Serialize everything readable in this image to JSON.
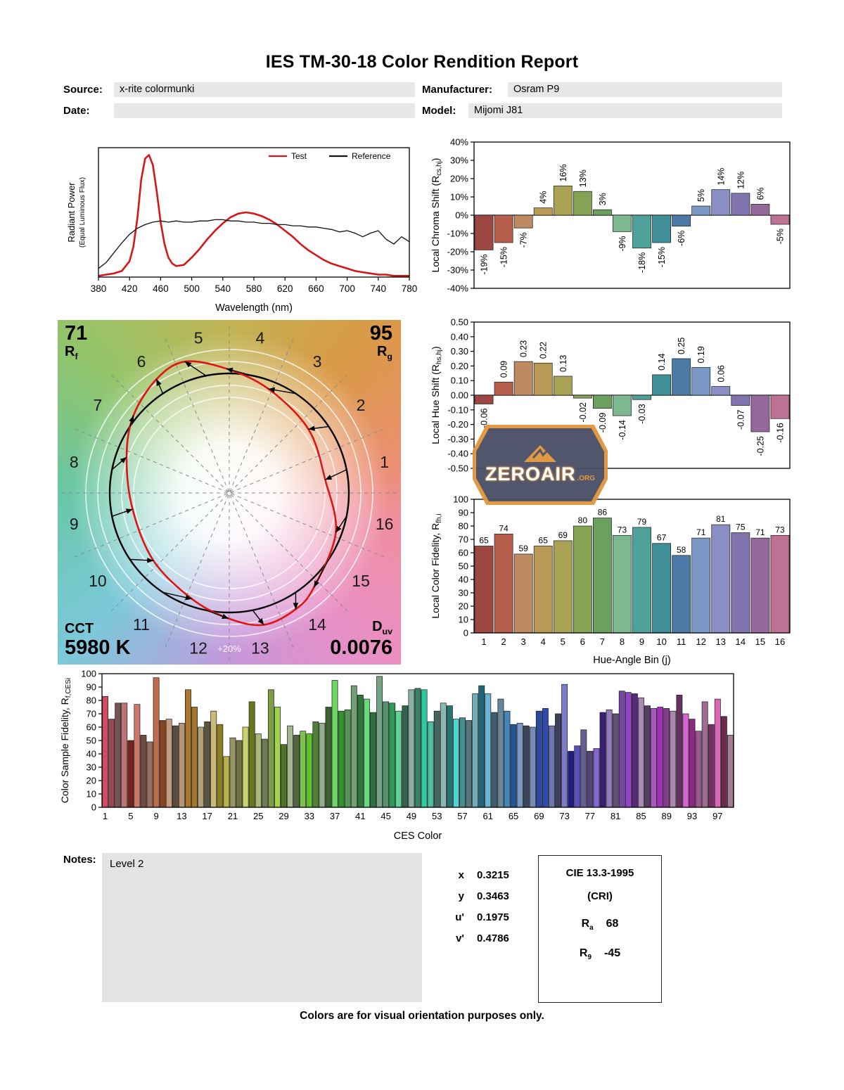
{
  "report": {
    "title": "IES TM-30-18 Color Rendition Report",
    "fields": {
      "source_label": "Source:",
      "source_value": "x-rite colormunki",
      "manufacturer_label": "Manufacturer:",
      "manufacturer_value": "Osram P9",
      "date_label": "Date:",
      "date_value": "",
      "model_label": "Model:",
      "model_value": "Mijomi J81"
    },
    "notes_label": "Notes:",
    "notes_value": "Level 2",
    "chromaticity": [
      {
        "label": "x",
        "value": "0.3215"
      },
      {
        "label": "y",
        "value": "0.3463"
      },
      {
        "label": "u'",
        "value": "0.1975"
      },
      {
        "label": "v'",
        "value": "0.4786"
      }
    ],
    "cri": {
      "title": "CIE 13.3-1995",
      "subtitle": "(CRI)",
      "ra_main": "R",
      "ra_sub": "a",
      "ra_value": "68",
      "r9_main": "R",
      "r9_sub": "9",
      "r9_value": "-45"
    },
    "footer": "Colors are for visual orientation purposes only.",
    "watermark": {
      "text": "ZEROAIR",
      "suffix": ".ORG"
    }
  },
  "cvg": {
    "rf_value": "71",
    "rf_main": "R",
    "rf_sub": "f",
    "rg_value": "95",
    "rg_main": "R",
    "rg_sub": "g",
    "cct_label": "CCT",
    "cct_value": "5980 K",
    "duv_main": "D",
    "duv_sub": "uv",
    "duv_value": "0.0076",
    "ring_label": "+20%",
    "reference_color": "#000000",
    "test_color": "#e01414"
  },
  "hue_bin_colors": [
    "#9e4742",
    "#b85f4b",
    "#bd8a62",
    "#b89a55",
    "#aaa255",
    "#84a355",
    "#6ba05e",
    "#7cb890",
    "#4fa29b",
    "#3f8f99",
    "#4a7aa5",
    "#7b97c6",
    "#8b8ec4",
    "#8173ad",
    "#95689c",
    "#bd7295"
  ],
  "chart_data": [
    {
      "id": "spectral",
      "type": "line",
      "title": "",
      "xlabel": "Wavelength (nm)",
      "ylabel_lines": [
        "Radiant Power",
        "(Equal Luminous Flux)"
      ],
      "xlim": [
        380,
        780
      ],
      "xtick_step": 40,
      "ylim": [
        0,
        1.06
      ],
      "legend_position": "top-right",
      "series": [
        {
          "name": "Test",
          "color": "#d81617",
          "stroke_width": 2.6,
          "x": [
            380,
            390,
            400,
            410,
            420,
            425,
            430,
            435,
            440,
            445,
            450,
            455,
            460,
            465,
            470,
            475,
            480,
            490,
            500,
            510,
            520,
            530,
            540,
            550,
            560,
            570,
            580,
            590,
            600,
            610,
            620,
            630,
            640,
            650,
            660,
            670,
            680,
            690,
            700,
            710,
            720,
            730,
            740,
            750,
            760,
            770,
            780
          ],
          "y": [
            0.01,
            0.02,
            0.03,
            0.05,
            0.13,
            0.25,
            0.48,
            0.8,
            0.97,
            1.0,
            0.92,
            0.7,
            0.45,
            0.27,
            0.16,
            0.11,
            0.09,
            0.1,
            0.16,
            0.23,
            0.31,
            0.38,
            0.44,
            0.49,
            0.52,
            0.53,
            0.52,
            0.5,
            0.47,
            0.43,
            0.38,
            0.33,
            0.27,
            0.22,
            0.18,
            0.14,
            0.11,
            0.09,
            0.07,
            0.05,
            0.04,
            0.03,
            0.02,
            0.02,
            0.01,
            0.01,
            0.01
          ]
        },
        {
          "name": "Reference",
          "color": "#111111",
          "stroke_width": 1.3,
          "x": [
            380,
            390,
            400,
            410,
            420,
            430,
            440,
            450,
            460,
            470,
            480,
            490,
            500,
            510,
            520,
            530,
            540,
            550,
            560,
            570,
            580,
            590,
            600,
            610,
            620,
            630,
            640,
            650,
            660,
            670,
            680,
            690,
            700,
            710,
            720,
            730,
            740,
            750,
            760,
            770,
            780
          ],
          "y": [
            0.07,
            0.12,
            0.2,
            0.28,
            0.35,
            0.4,
            0.43,
            0.45,
            0.46,
            0.45,
            0.46,
            0.45,
            0.45,
            0.46,
            0.46,
            0.47,
            0.47,
            0.46,
            0.46,
            0.45,
            0.45,
            0.44,
            0.44,
            0.43,
            0.43,
            0.42,
            0.42,
            0.41,
            0.41,
            0.4,
            0.39,
            0.37,
            0.38,
            0.36,
            0.33,
            0.36,
            0.38,
            0.31,
            0.27,
            0.33,
            0.29
          ]
        }
      ]
    },
    {
      "id": "chroma_shift",
      "type": "bar",
      "ylabel_parts": [
        {
          "t": "Local Chroma Shift (R"
        },
        {
          "t": "cs,hj",
          "sub": true
        },
        {
          "t": ")"
        }
      ],
      "ylim": [
        -40,
        40
      ],
      "ytick_step": 10,
      "ytick_format": "pct",
      "categories": [
        1,
        2,
        3,
        4,
        5,
        6,
        7,
        8,
        9,
        10,
        11,
        12,
        13,
        14,
        15,
        16
      ],
      "values": [
        -19,
        -15,
        -7,
        4,
        16,
        13,
        3,
        -9,
        -18,
        -15,
        -6,
        5,
        14,
        12,
        6,
        -5
      ],
      "bar_labels": [
        "-19%",
        "-15%",
        "-7%",
        "4%",
        "16%",
        "13%",
        "3%",
        "-9%",
        "-18%",
        "-15%",
        "-6%",
        "5%",
        "14%",
        "12%",
        "6%",
        "-5%"
      ],
      "label_rotate": true,
      "grid": false
    },
    {
      "id": "hue_shift",
      "type": "bar",
      "ylabel_parts": [
        {
          "t": "Local Hue Shift (R"
        },
        {
          "t": "hs,hj",
          "sub": true
        },
        {
          "t": ")"
        }
      ],
      "ylim": [
        -0.5,
        0.5
      ],
      "ytick_step": 0.1,
      "ytick_format": "f2",
      "categories": [
        1,
        2,
        3,
        4,
        5,
        6,
        7,
        8,
        9,
        10,
        11,
        12,
        13,
        14,
        15,
        16
      ],
      "values": [
        -0.06,
        0.09,
        0.23,
        0.22,
        0.13,
        -0.02,
        -0.09,
        -0.14,
        -0.03,
        0.14,
        0.25,
        0.19,
        0.06,
        -0.07,
        -0.25,
        -0.16
      ],
      "bar_labels": [
        "-0.06",
        "0.09",
        "0.23",
        "0.22",
        "0.13",
        "-0.02",
        "-0.09",
        "-0.14",
        "-0.03",
        "0.14",
        "0.25",
        "0.19",
        "0.06",
        "-0.07",
        "-0.25",
        "-0.16"
      ],
      "label_rotate": true,
      "grid": false
    },
    {
      "id": "local_fidelity",
      "type": "bar",
      "ylabel_parts": [
        {
          "t": "Local Color Fidelity, R"
        },
        {
          "t": "fh,i",
          "sub": true
        }
      ],
      "xlabel": "Hue-Angle Bin (j)",
      "ylim": [
        0,
        100
      ],
      "ytick_step": 10,
      "ytick_format": "int",
      "categories": [
        1,
        2,
        3,
        4,
        5,
        6,
        7,
        8,
        9,
        10,
        11,
        12,
        13,
        14,
        15,
        16
      ],
      "values": [
        65,
        74,
        59,
        65,
        69,
        80,
        86,
        73,
        79,
        67,
        58,
        71,
        81,
        75,
        71,
        73
      ],
      "bar_labels": [
        "65",
        "74",
        "59",
        "65",
        "69",
        "80",
        "86",
        "73",
        "79",
        "67",
        "58",
        "71",
        "81",
        "75",
        "71",
        "73"
      ],
      "label_rotate": false,
      "show_xticks": true,
      "grid": false
    },
    {
      "id": "ces_fidelity",
      "type": "bar",
      "ylabel_parts": [
        {
          "t": "Color Sample Fidelity, R"
        },
        {
          "t": "f,CESi",
          "sub": true
        }
      ],
      "xlabel": "CES Color",
      "ylim": [
        0,
        100
      ],
      "ytick_step": 10,
      "ytick_format": "int",
      "xtick_every": 4,
      "values": [
        83,
        66,
        78,
        78,
        50,
        77,
        54,
        49,
        97,
        65,
        66,
        61,
        63,
        88,
        75,
        60,
        64,
        72,
        62,
        38,
        52,
        50,
        60,
        79,
        55,
        51,
        88,
        75,
        47,
        61,
        54,
        57,
        55,
        64,
        63,
        75,
        95,
        72,
        73,
        91,
        84,
        81,
        71,
        98,
        79,
        78,
        72,
        76,
        88,
        89,
        88,
        64,
        72,
        78,
        76,
        66,
        67,
        65,
        85,
        91,
        85,
        71,
        81,
        72,
        62,
        63,
        61,
        60,
        72,
        74,
        61,
        70,
        92,
        42,
        46,
        58,
        42,
        44,
        71,
        73,
        70,
        87,
        86,
        85,
        82,
        76,
        74,
        75,
        74,
        72,
        84,
        70,
        66,
        57,
        79,
        62,
        81,
        68,
        54
      ],
      "label_rotate": false,
      "grid": false
    }
  ]
}
